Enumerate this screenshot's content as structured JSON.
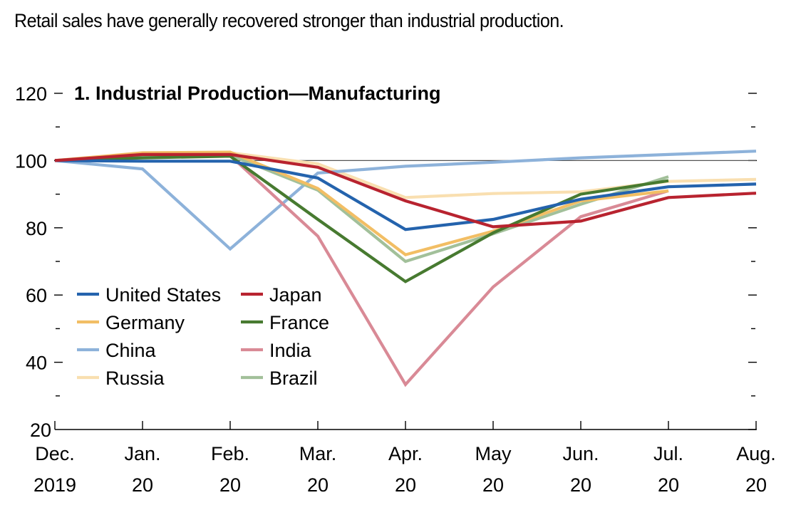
{
  "headline": "Retail sales have generally recovered stronger than industrial production.",
  "chart_data": {
    "type": "line",
    "title": "1. Industrial Production—Manufacturing",
    "xlabel": "",
    "ylabel": "",
    "categories": [
      [
        "Dec.",
        "2019"
      ],
      [
        "Jan.",
        "20"
      ],
      [
        "Feb.",
        "20"
      ],
      [
        "Mar.",
        "20"
      ],
      [
        "Apr.",
        "20"
      ],
      [
        "May",
        "20"
      ],
      [
        "Jun.",
        "20"
      ],
      [
        "Jul.",
        "20"
      ],
      [
        "Aug.",
        "20"
      ]
    ],
    "ylim": [
      20,
      120
    ],
    "yticks": [
      20,
      40,
      60,
      80,
      100,
      120
    ],
    "yminor_ticks": [
      30,
      50,
      70,
      90,
      110
    ],
    "reference_line": 100,
    "grid": false,
    "legend": "lower-left, two columns",
    "series": [
      {
        "name": "United States",
        "color": "#2463AD",
        "values": [
          100,
          99.8,
          99.8,
          94.8,
          79.5,
          82.5,
          88.5,
          92.2,
          93.0
        ]
      },
      {
        "name": "Japan",
        "color": "#B8232F",
        "values": [
          100,
          101.8,
          101.8,
          98.0,
          88.0,
          80.3,
          82.0,
          89.0,
          90.3
        ]
      },
      {
        "name": "Germany",
        "color": "#F2BE64",
        "values": [
          100,
          102.3,
          102.5,
          91.7,
          72.0,
          79.0,
          88.0,
          91.0,
          null
        ]
      },
      {
        "name": "France",
        "color": "#477A30",
        "values": [
          100,
          100.8,
          101.3,
          82.5,
          64.0,
          78.5,
          90.0,
          94.0,
          null
        ]
      },
      {
        "name": "China",
        "color": "#8DB2DA",
        "values": [
          100,
          97.5,
          73.7,
          96.3,
          98.3,
          99.5,
          100.8,
          101.8,
          102.8
        ]
      },
      {
        "name": "India",
        "color": "#D98A96",
        "values": [
          100,
          101.5,
          101.5,
          77.5,
          33.4,
          62.4,
          83.3,
          91.0,
          null
        ]
      },
      {
        "name": "Russia",
        "color": "#F9DFB0",
        "values": [
          100,
          102.0,
          102.3,
          99.0,
          89.0,
          90.2,
          90.7,
          93.8,
          94.4
        ]
      },
      {
        "name": "Brazil",
        "color": "#A2C09A",
        "values": [
          100,
          101.3,
          101.6,
          91.2,
          70.0,
          78.2,
          87.0,
          95.2,
          null
        ]
      }
    ],
    "draw_order": [
      "Russia",
      "China",
      "India",
      "Brazil",
      "Germany",
      "France",
      "United States",
      "Japan"
    ]
  }
}
